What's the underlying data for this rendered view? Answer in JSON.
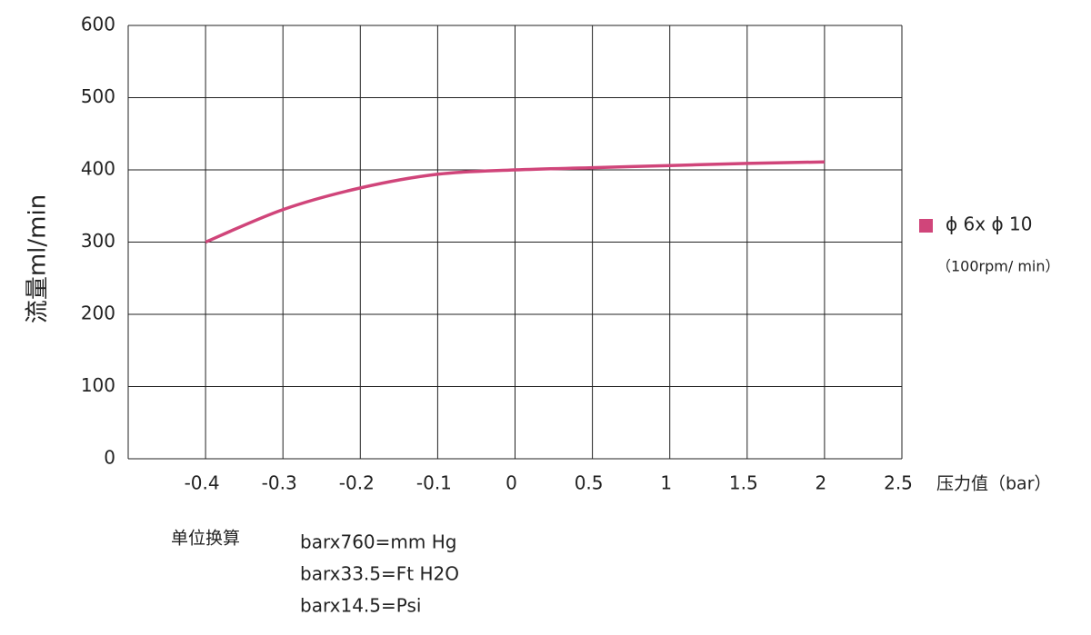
{
  "chart_data": {
    "type": "line",
    "categories": [
      "-0.4",
      "-0.3",
      "-0.2",
      "-0.1",
      "0",
      "0.5",
      "1",
      "1.5",
      "2",
      "2.5"
    ],
    "series": [
      {
        "name": "ϕ 6x ϕ 10",
        "subtitle": "（100rpm/ min）",
        "color": "#d0457a",
        "values": [
          300,
          345,
          375,
          394,
          400,
          403,
          406,
          409,
          411,
          null
        ]
      }
    ],
    "x_label": "压力值（bar）",
    "y_label": "流量ml/min",
    "ylim": [
      0,
      600
    ],
    "yticks": [
      0,
      100,
      200,
      300,
      400,
      500,
      600
    ],
    "grid": true,
    "notes_title": "单位换算",
    "notes": [
      "barx760=mm Hg",
      "barx33.5=Ft H2O",
      "barx14.5=Psi"
    ]
  }
}
